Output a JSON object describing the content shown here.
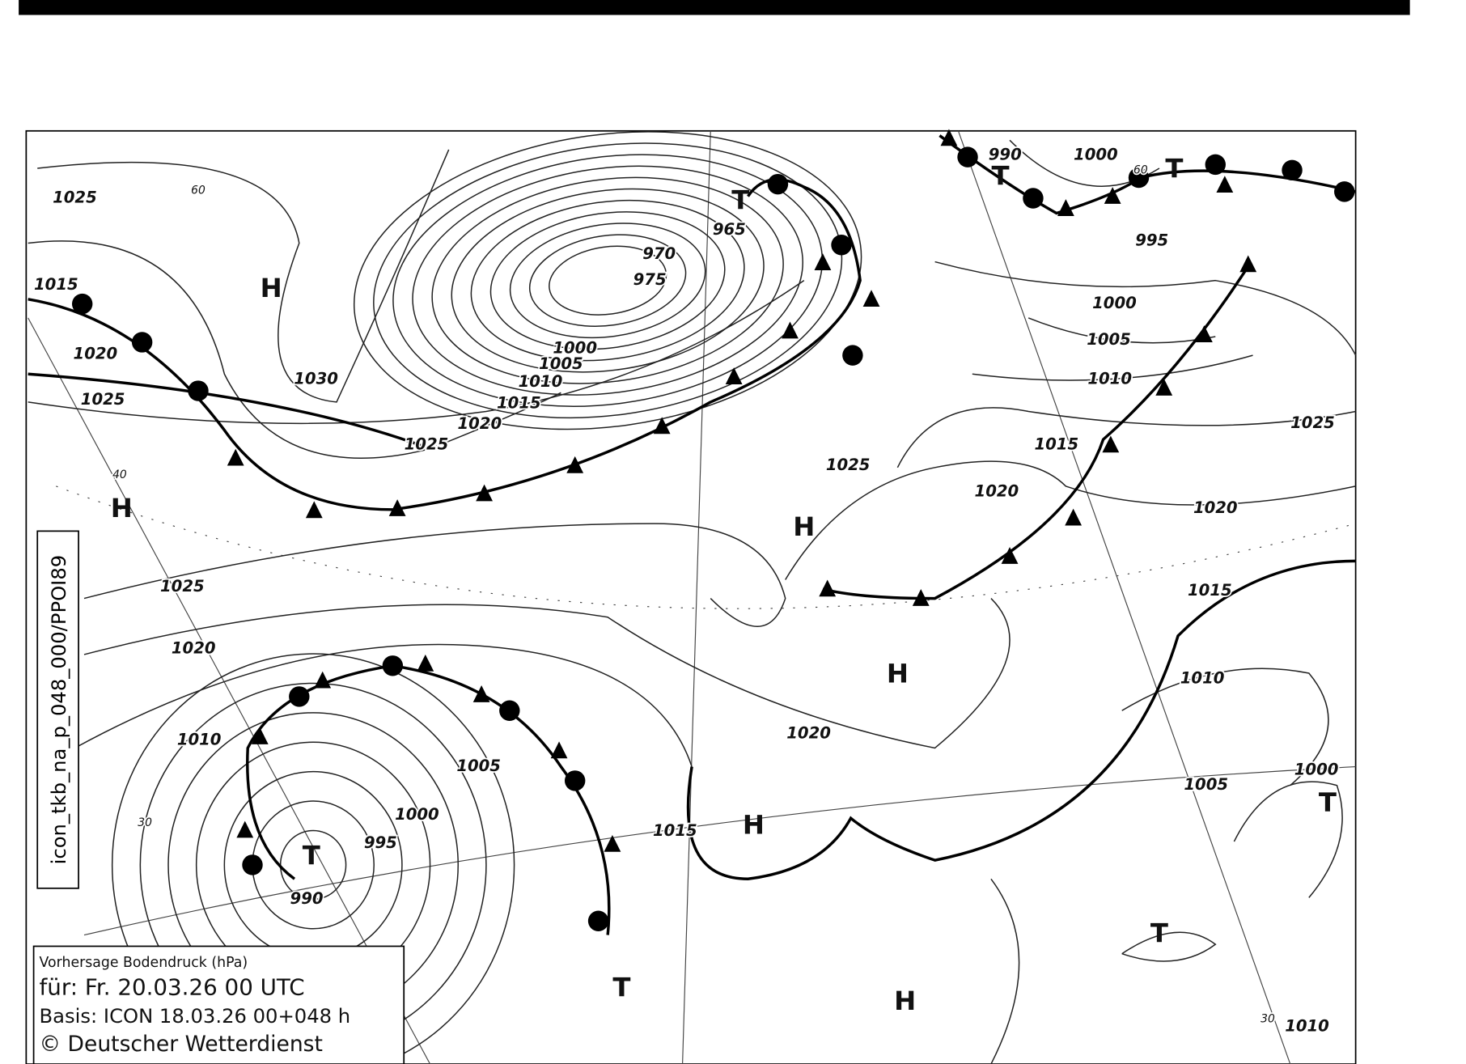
{
  "pressure_labels": [
    "1025",
    "60",
    "1015",
    "1020",
    "1025",
    "1030",
    "40",
    "1025",
    "1020",
    "1010",
    "30",
    "1005",
    "1000",
    "995",
    "990",
    "1015",
    "1020",
    "965",
    "970",
    "975",
    "1000",
    "1005",
    "1010",
    "1015",
    "1020",
    "1025",
    "990",
    "1000",
    "60",
    "995",
    "1000",
    "1005",
    "1010",
    "1015",
    "1025",
    "1025",
    "1020",
    "1020",
    "1015",
    "1010",
    "1005",
    "1000",
    "30",
    "1010"
  ],
  "centers": [
    "H",
    "H",
    "H",
    "H",
    "H",
    "H",
    "T",
    "T",
    "T",
    "T",
    "T",
    "T",
    "T"
  ],
  "side_label": "icon_tkb_na_p_048_000/PPOI89",
  "info_box": {
    "title": "Vorhersage Bodendruck (hPa)",
    "valid": "für:  Fr. 20.03.26  00 UTC",
    "base": "Basis: ICON  18.03.26 00+048 h",
    "credit": "© Deutscher Wetterdienst"
  }
}
